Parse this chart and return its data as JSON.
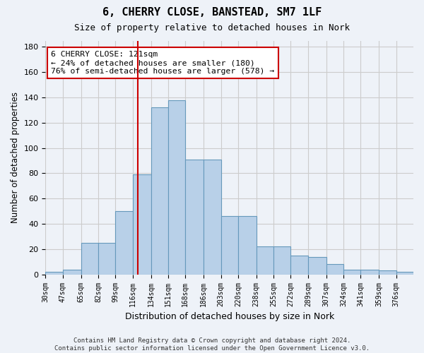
{
  "title": "6, CHERRY CLOSE, BANSTEAD, SM7 1LF",
  "subtitle": "Size of property relative to detached houses in Nork",
  "xlabel": "Distribution of detached houses by size in Nork",
  "ylabel": "Number of detached properties",
  "footer_line1": "Contains HM Land Registry data © Crown copyright and database right 2024.",
  "footer_line2": "Contains public sector information licensed under the Open Government Licence v3.0.",
  "bin_labels": [
    "30sqm",
    "47sqm",
    "65sqm",
    "82sqm",
    "99sqm",
    "116sqm",
    "134sqm",
    "151sqm",
    "168sqm",
    "186sqm",
    "203sqm",
    "220sqm",
    "238sqm",
    "255sqm",
    "272sqm",
    "289sqm",
    "307sqm",
    "324sqm",
    "341sqm",
    "359sqm",
    "376sqm"
  ],
  "values": [
    2,
    4,
    25,
    25,
    50,
    79,
    132,
    138,
    91,
    91,
    46,
    46,
    22,
    22,
    15,
    14,
    8,
    4,
    4,
    3,
    2
  ],
  "bar_color": "#b8d0e8",
  "bar_edge_color": "#6699bb",
  "vline_x": 121,
  "vline_color": "#cc0000",
  "annotation_text": "6 CHERRY CLOSE: 121sqm\n← 24% of detached houses are smaller (180)\n76% of semi-detached houses are larger (578) →",
  "annotation_box_color": "#cc0000",
  "annotation_box_fill": "#ffffff",
  "ylim": [
    0,
    185
  ],
  "yticks": [
    0,
    20,
    40,
    60,
    80,
    100,
    120,
    140,
    160,
    180
  ],
  "grid_color": "#cccccc",
  "background_color": "#eef2f8",
  "property_sqm": 121,
  "bin_edges": [
    30,
    47,
    65,
    82,
    99,
    116,
    134,
    151,
    168,
    186,
    203,
    220,
    238,
    255,
    272,
    289,
    307,
    324,
    341,
    359,
    376,
    393
  ]
}
